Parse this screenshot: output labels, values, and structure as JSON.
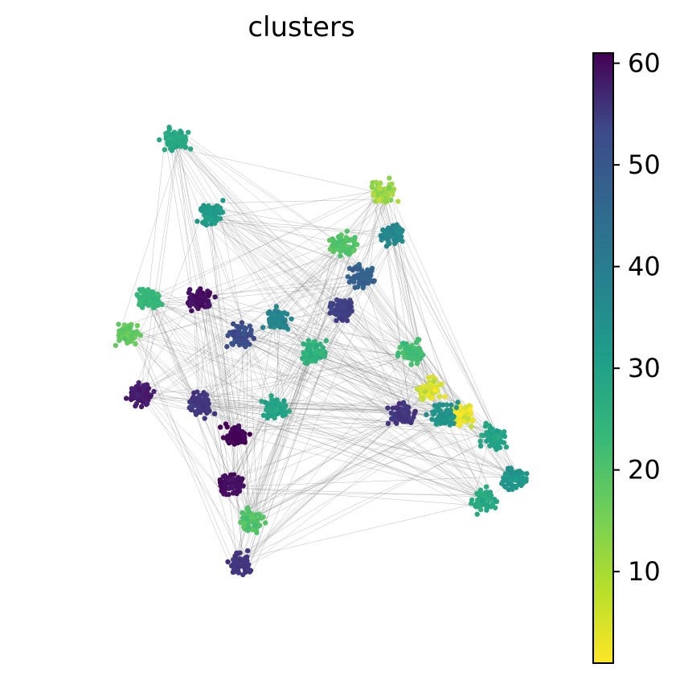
{
  "chart_data": [
    {
      "type": "scatter",
      "title": "clusters",
      "xlabel": "",
      "ylabel": "",
      "grid": false,
      "axes_visible": false,
      "edges_color": "#888888",
      "colormap": "viridis",
      "description_of_groups": [
        {
          "x": 0.38,
          "y": 0.55,
          "value": 45
        },
        {
          "x": 0.3,
          "y": 0.62,
          "value": 58
        },
        {
          "x": 0.45,
          "y": 0.58,
          "value": 30
        },
        {
          "x": 0.52,
          "y": 0.52,
          "value": 18
        },
        {
          "x": 0.58,
          "y": 0.6,
          "value": 48
        },
        {
          "x": 0.62,
          "y": 0.66,
          "value": 40
        },
        {
          "x": 0.68,
          "y": 0.74,
          "value": 30
        },
        {
          "x": 0.66,
          "y": 0.82,
          "value": 6
        },
        {
          "x": 0.2,
          "y": 0.62,
          "value": 16
        },
        {
          "x": 0.16,
          "y": 0.55,
          "value": 10
        },
        {
          "x": 0.25,
          "y": 0.92,
          "value": 20
        },
        {
          "x": 0.32,
          "y": 0.78,
          "value": 24
        },
        {
          "x": 0.58,
          "y": 0.72,
          "value": 12
        },
        {
          "x": 0.72,
          "y": 0.52,
          "value": 14
        },
        {
          "x": 0.75,
          "y": 0.45,
          "value": 3
        },
        {
          "x": 0.82,
          "y": 0.4,
          "value": 2
        },
        {
          "x": 0.88,
          "y": 0.36,
          "value": 22
        },
        {
          "x": 0.92,
          "y": 0.28,
          "value": 26
        },
        {
          "x": 0.86,
          "y": 0.24,
          "value": 20
        },
        {
          "x": 0.18,
          "y": 0.44,
          "value": 55
        },
        {
          "x": 0.3,
          "y": 0.42,
          "value": 50
        },
        {
          "x": 0.37,
          "y": 0.36,
          "value": 60
        },
        {
          "x": 0.36,
          "y": 0.27,
          "value": 58
        },
        {
          "x": 0.4,
          "y": 0.2,
          "value": 12
        },
        {
          "x": 0.38,
          "y": 0.12,
          "value": 50
        },
        {
          "x": 0.45,
          "y": 0.41,
          "value": 22
        },
        {
          "x": 0.7,
          "y": 0.4,
          "value": 50
        },
        {
          "x": 0.78,
          "y": 0.4,
          "value": 26
        }
      ]
    }
  ],
  "colorbar": {
    "min": 1,
    "max": 61,
    "tick_values": [
      10,
      20,
      30,
      40,
      50,
      60
    ],
    "tick_labels": [
      "10",
      "20",
      "30",
      "40",
      "50",
      "60"
    ]
  }
}
